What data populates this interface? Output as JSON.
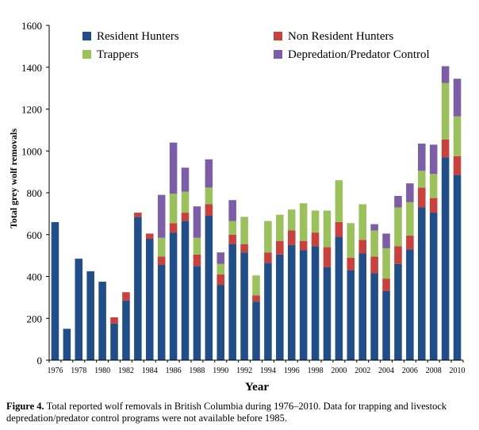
{
  "chart_data": {
    "type": "bar",
    "stacked": true,
    "ylabel": "Total grey wolf removals",
    "xlabel": "Year",
    "ylim": [
      0,
      1600
    ],
    "yticks": [
      "0",
      "200",
      "400",
      "600",
      "800",
      "1000",
      "1200",
      "1400",
      "1600"
    ],
    "grid": false,
    "legend_position": "top",
    "categories": [
      "1976",
      "1977",
      "1978",
      "1979",
      "1980",
      "1981",
      "1982",
      "1983",
      "1984",
      "1985",
      "1986",
      "1987",
      "1988",
      "1989",
      "1990",
      "1991",
      "1992",
      "1993",
      "1994",
      "1995",
      "1996",
      "1997",
      "1998",
      "1999",
      "2000",
      "2001",
      "2002",
      "2003",
      "2004",
      "2005",
      "2006",
      "2007",
      "2008",
      "2009",
      "2010"
    ],
    "xtick_labels": [
      "1976",
      "1978",
      "1980",
      "1982",
      "1984",
      "1986",
      "1988",
      "1990",
      "1992",
      "1994",
      "1996",
      "1998",
      "2000",
      "2002",
      "2004",
      "2006",
      "2008",
      "2010"
    ],
    "series": [
      {
        "name": "Resident Hunters",
        "color": "#1f4e89",
        "values": [
          660,
          150,
          485,
          425,
          375,
          175,
          285,
          685,
          580,
          455,
          610,
          665,
          450,
          690,
          360,
          555,
          515,
          280,
          465,
          505,
          550,
          525,
          545,
          445,
          590,
          430,
          510,
          415,
          330,
          460,
          530,
          730,
          705,
          970,
          885
        ]
      },
      {
        "name": "Non Resident Hunters",
        "color": "#c9403c",
        "values": [
          0,
          0,
          0,
          0,
          0,
          30,
          40,
          20,
          25,
          40,
          45,
          40,
          55,
          55,
          50,
          45,
          40,
          30,
          50,
          65,
          70,
          45,
          65,
          95,
          70,
          60,
          65,
          80,
          60,
          85,
          65,
          95,
          70,
          85,
          90
        ]
      },
      {
        "name": "Trappers",
        "color": "#9bc25a",
        "values": [
          0,
          0,
          0,
          0,
          0,
          0,
          0,
          0,
          0,
          90,
          140,
          100,
          80,
          80,
          50,
          65,
          130,
          95,
          150,
          125,
          100,
          180,
          105,
          175,
          200,
          165,
          170,
          125,
          145,
          185,
          160,
          80,
          115,
          270,
          190
        ]
      },
      {
        "name": "Depredation/Predator Control",
        "color": "#7b5da8",
        "values": [
          0,
          0,
          0,
          0,
          0,
          0,
          0,
          0,
          0,
          205,
          245,
          115,
          150,
          135,
          55,
          100,
          0,
          0,
          0,
          0,
          0,
          0,
          0,
          0,
          0,
          0,
          0,
          30,
          70,
          55,
          90,
          130,
          140,
          80,
          180
        ]
      }
    ]
  },
  "caption": {
    "label": "Figure 4.",
    "text": " Total reported wolf removals in British Columbia during 1976–2010. Data for trapping and livestock depredation/predator control programs were not available before 1985."
  }
}
